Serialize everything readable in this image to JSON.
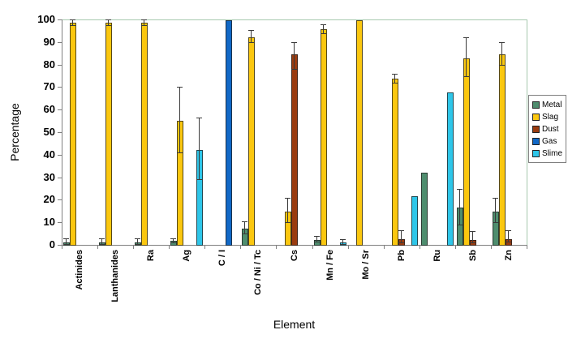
{
  "colors": {
    "plot_border": "#a6c9ae",
    "axis_line": "#808080",
    "error_bar": "#3a3a3a",
    "background": "#ffffff"
  },
  "chart_data": {
    "type": "bar",
    "title": "",
    "xlabel": "Element",
    "ylabel": "Percentage",
    "ylim": [
      0,
      100
    ],
    "y_ticks": [
      0,
      10,
      20,
      30,
      40,
      50,
      60,
      70,
      80,
      90,
      100
    ],
    "legend_position": "right",
    "grid": false,
    "categories": [
      "Actinides",
      "Lanthanides",
      "Ra",
      "Ag",
      "C / I",
      "Co / Ni / Tc",
      "Cs",
      "Mn / Fe",
      "Mo / Sr",
      "Pb",
      "Ru",
      "Sb",
      "Zn"
    ],
    "series": [
      {
        "name": "Metal",
        "color": "#4e8d6e",
        "values": [
          1.5,
          1.5,
          1.5,
          2,
          null,
          7.5,
          null,
          2.5,
          null,
          null,
          32.5,
          17,
          15
        ],
        "errors": [
          [
            0.5,
            3
          ],
          [
            0.5,
            3
          ],
          [
            0.5,
            3
          ],
          [
            1,
            3
          ],
          null,
          [
            5,
            10.5
          ],
          null,
          [
            1.5,
            4
          ],
          null,
          null,
          null,
          [
            9,
            25
          ],
          [
            10,
            21
          ]
        ]
      },
      {
        "name": "Slag",
        "color": "#fbc70f",
        "values": [
          99,
          99,
          99,
          55.5,
          null,
          92.5,
          15,
          96,
          100,
          74,
          null,
          83,
          85
        ],
        "errors": [
          [
            97.5,
            100
          ],
          [
            97.5,
            100
          ],
          [
            97.5,
            100
          ],
          [
            41,
            70
          ],
          null,
          [
            90,
            95.5
          ],
          [
            10,
            21
          ],
          [
            94,
            98
          ],
          null,
          [
            72,
            76
          ],
          null,
          [
            75,
            92
          ],
          [
            80,
            90
          ]
        ]
      },
      {
        "name": "Dust",
        "color": "#9a3b0f",
        "values": [
          null,
          null,
          null,
          null,
          null,
          null,
          85,
          null,
          null,
          3,
          null,
          2.5,
          3
        ],
        "errors": [
          null,
          null,
          null,
          null,
          null,
          null,
          [
            78,
            90
          ],
          null,
          null,
          [
            1,
            6.5
          ],
          null,
          [
            1,
            6
          ],
          [
            1.5,
            6.5
          ]
        ]
      },
      {
        "name": "Gas",
        "color": "#1168c6",
        "values": [
          null,
          null,
          null,
          null,
          100,
          null,
          null,
          null,
          null,
          null,
          null,
          null,
          null
        ],
        "errors": [
          null,
          null,
          null,
          null,
          null,
          null,
          null,
          null,
          null,
          null,
          null,
          null,
          null
        ]
      },
      {
        "name": "Slime",
        "color": "#2ec6e9",
        "values": [
          null,
          null,
          null,
          42.5,
          null,
          null,
          null,
          1.5,
          null,
          22,
          68,
          null,
          null
        ],
        "errors": [
          null,
          null,
          null,
          [
            29,
            56.5
          ],
          null,
          null,
          null,
          [
            0.5,
            2.5
          ],
          null,
          null,
          null,
          null,
          null
        ]
      }
    ]
  }
}
